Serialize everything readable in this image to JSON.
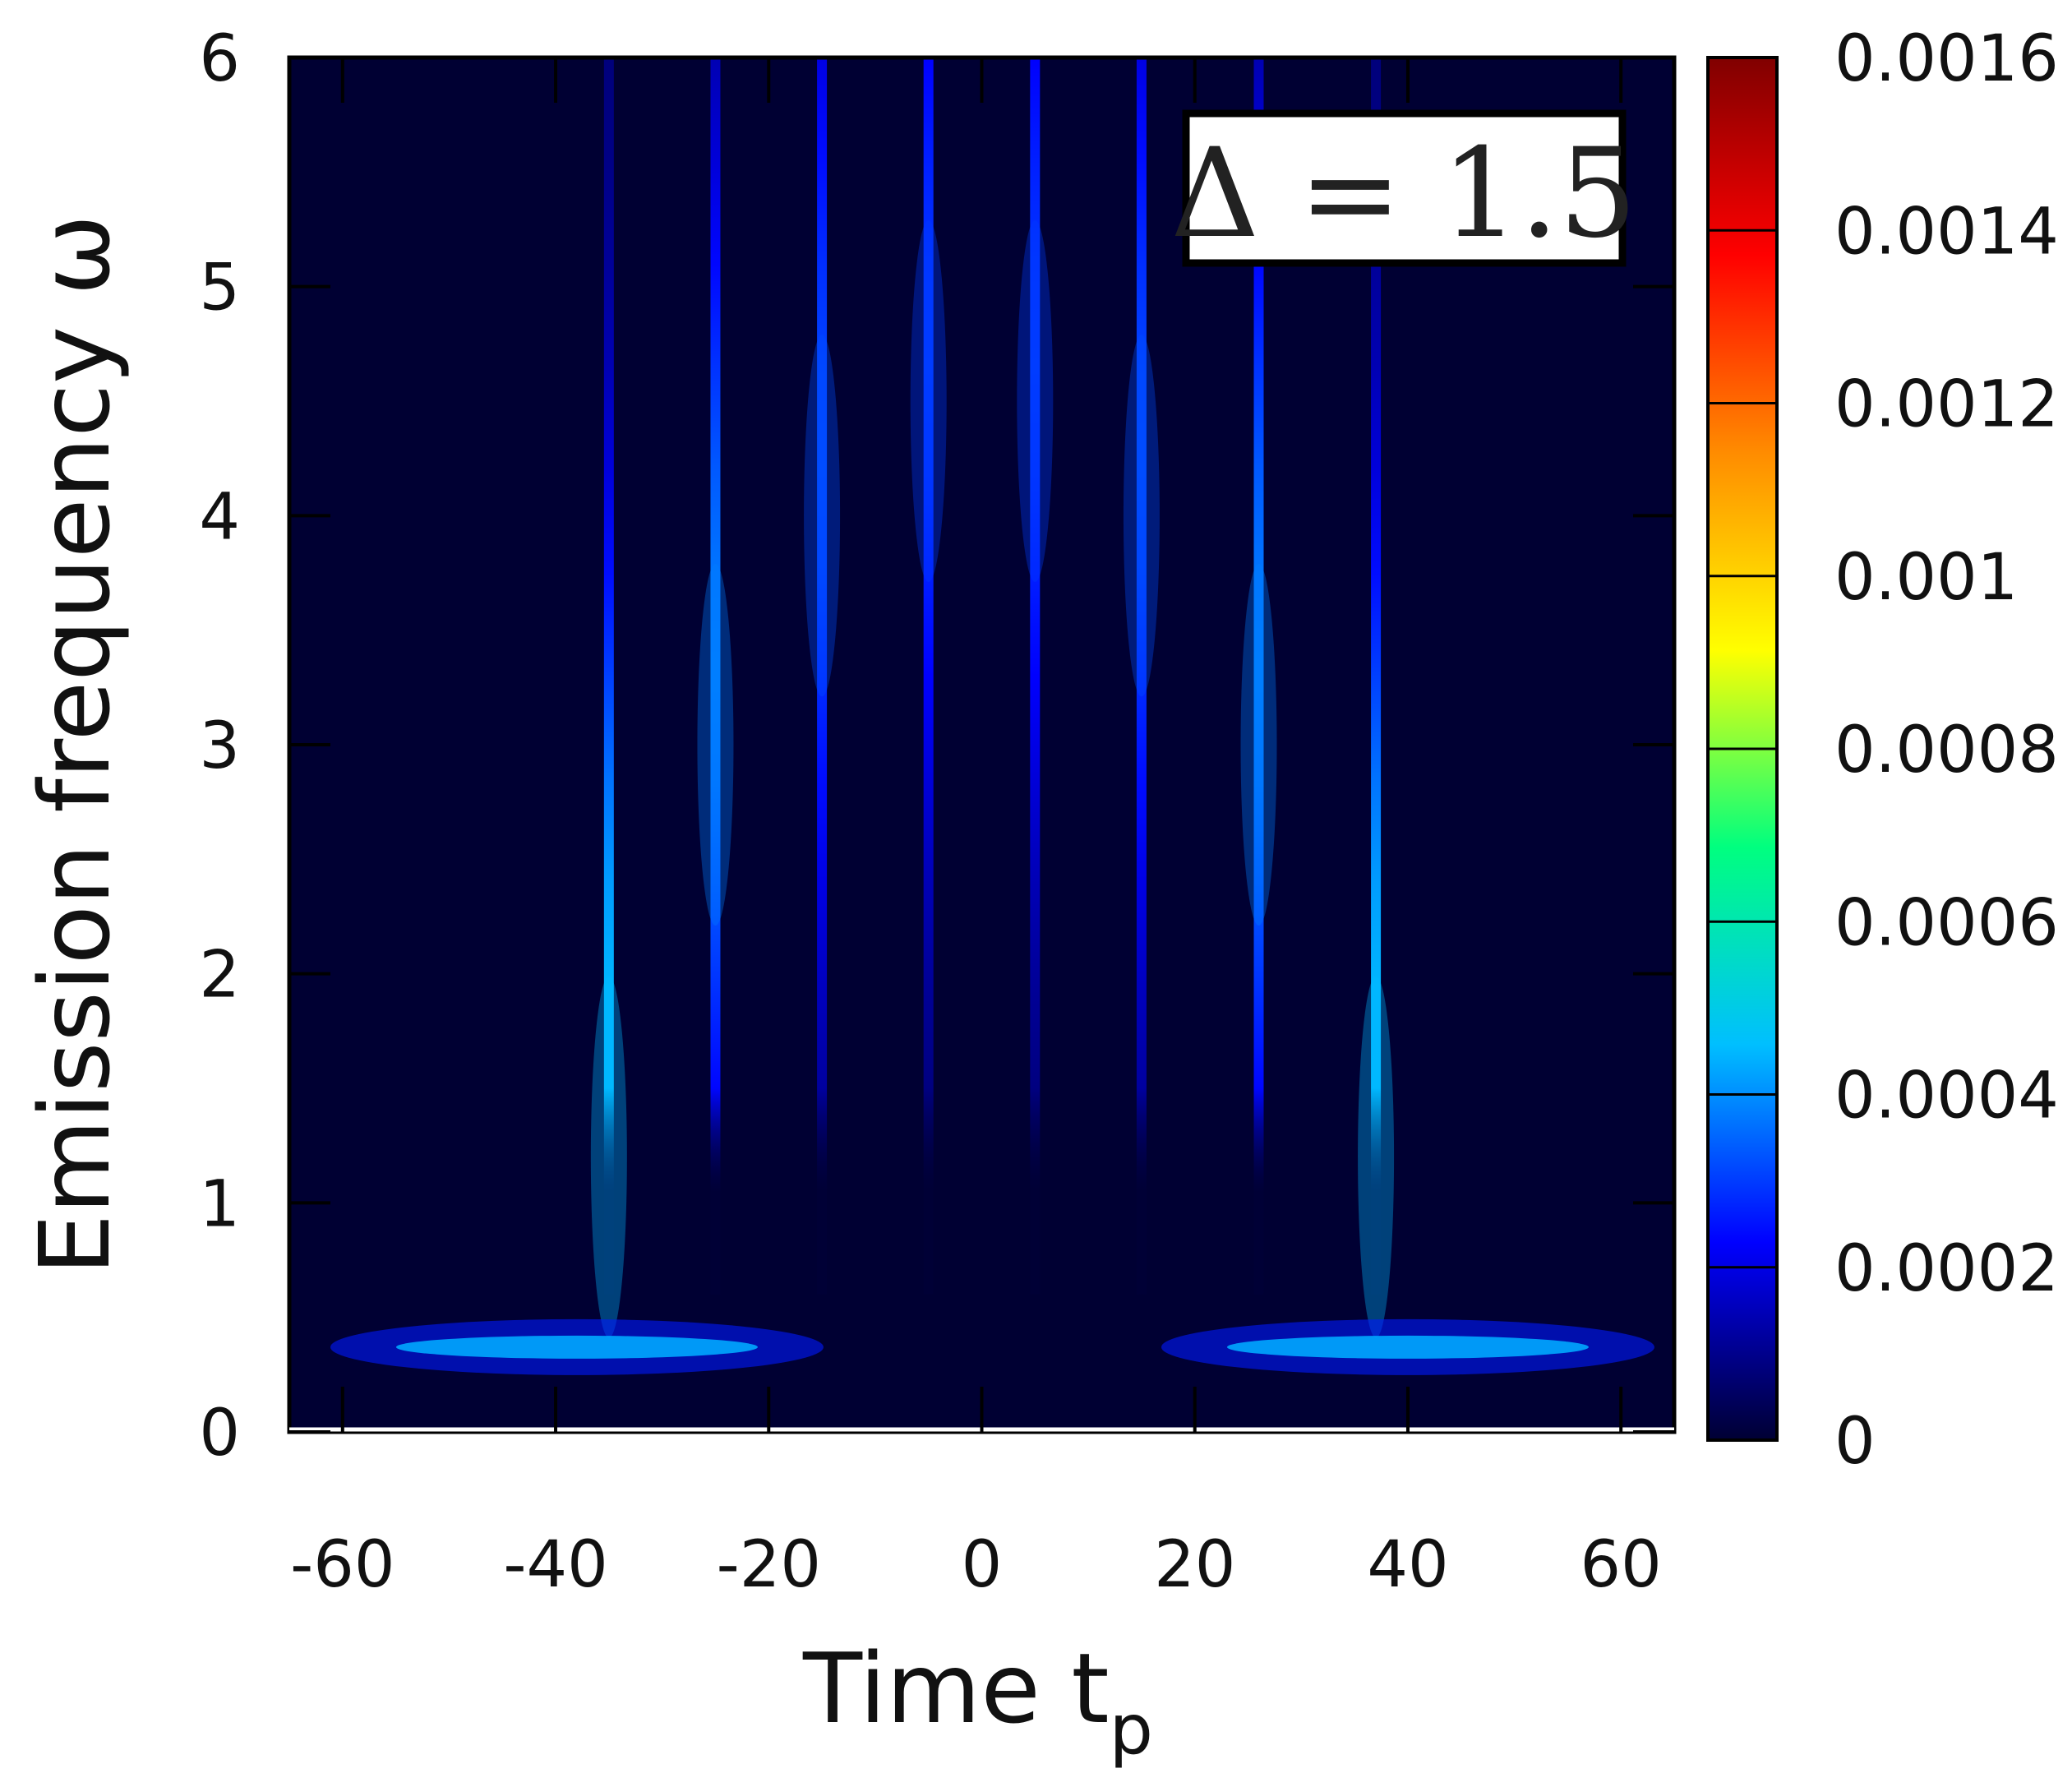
{
  "chart_data": {
    "type": "heatmap",
    "title": "",
    "xlabel": "Time t",
    "xlabel_subscript": "p",
    "ylabel": "Emission frequency ω",
    "xlim": [
      -65,
      65
    ],
    "ylim": [
      0,
      6
    ],
    "x_ticks": [
      "-60",
      "-40",
      "-20",
      "0",
      "20",
      "40",
      "60"
    ],
    "y_ticks": [
      "0",
      "1",
      "2",
      "3",
      "4",
      "5",
      "6"
    ],
    "annotation": "Δ = 1.5",
    "colorbar": {
      "min": 0,
      "max": 0.0016,
      "ticks": [
        "0",
        "0.0002",
        "0.0004",
        "0.0006",
        "0.0008",
        "0.001",
        "0.0012",
        "0.0014",
        "0.0016"
      ],
      "colormap": [
        "#000033",
        "#0000ff",
        "#00bfff",
        "#00ff7f",
        "#ffff00",
        "#ff8c00",
        "#ff0000",
        "#800000"
      ]
    },
    "streaks": [
      {
        "t": -35,
        "peak_omega": 1.2,
        "peak_value": 0.00045,
        "extent_omega": 6
      },
      {
        "t": -25,
        "peak_omega": 3.0,
        "peak_value": 0.00038,
        "extent_omega": 6
      },
      {
        "t": -15,
        "peak_omega": 4.0,
        "peak_value": 0.00032,
        "extent_omega": 6
      },
      {
        "t": -5,
        "peak_omega": 4.5,
        "peak_value": 0.0003,
        "extent_omega": 6
      },
      {
        "t": 5,
        "peak_omega": 4.5,
        "peak_value": 0.0003,
        "extent_omega": 6
      },
      {
        "t": 15,
        "peak_omega": 4.0,
        "peak_value": 0.00032,
        "extent_omega": 6
      },
      {
        "t": 26,
        "peak_omega": 3.0,
        "peak_value": 0.00038,
        "extent_omega": 6
      },
      {
        "t": 37,
        "peak_omega": 1.2,
        "peak_value": 0.00045,
        "extent_omega": 6
      }
    ],
    "low_frequency_bands": [
      {
        "t_center": -38,
        "omega": 0.37,
        "peak_value": 0.00043
      },
      {
        "t_center": 40,
        "omega": 0.37,
        "peak_value": 0.00043
      }
    ]
  }
}
